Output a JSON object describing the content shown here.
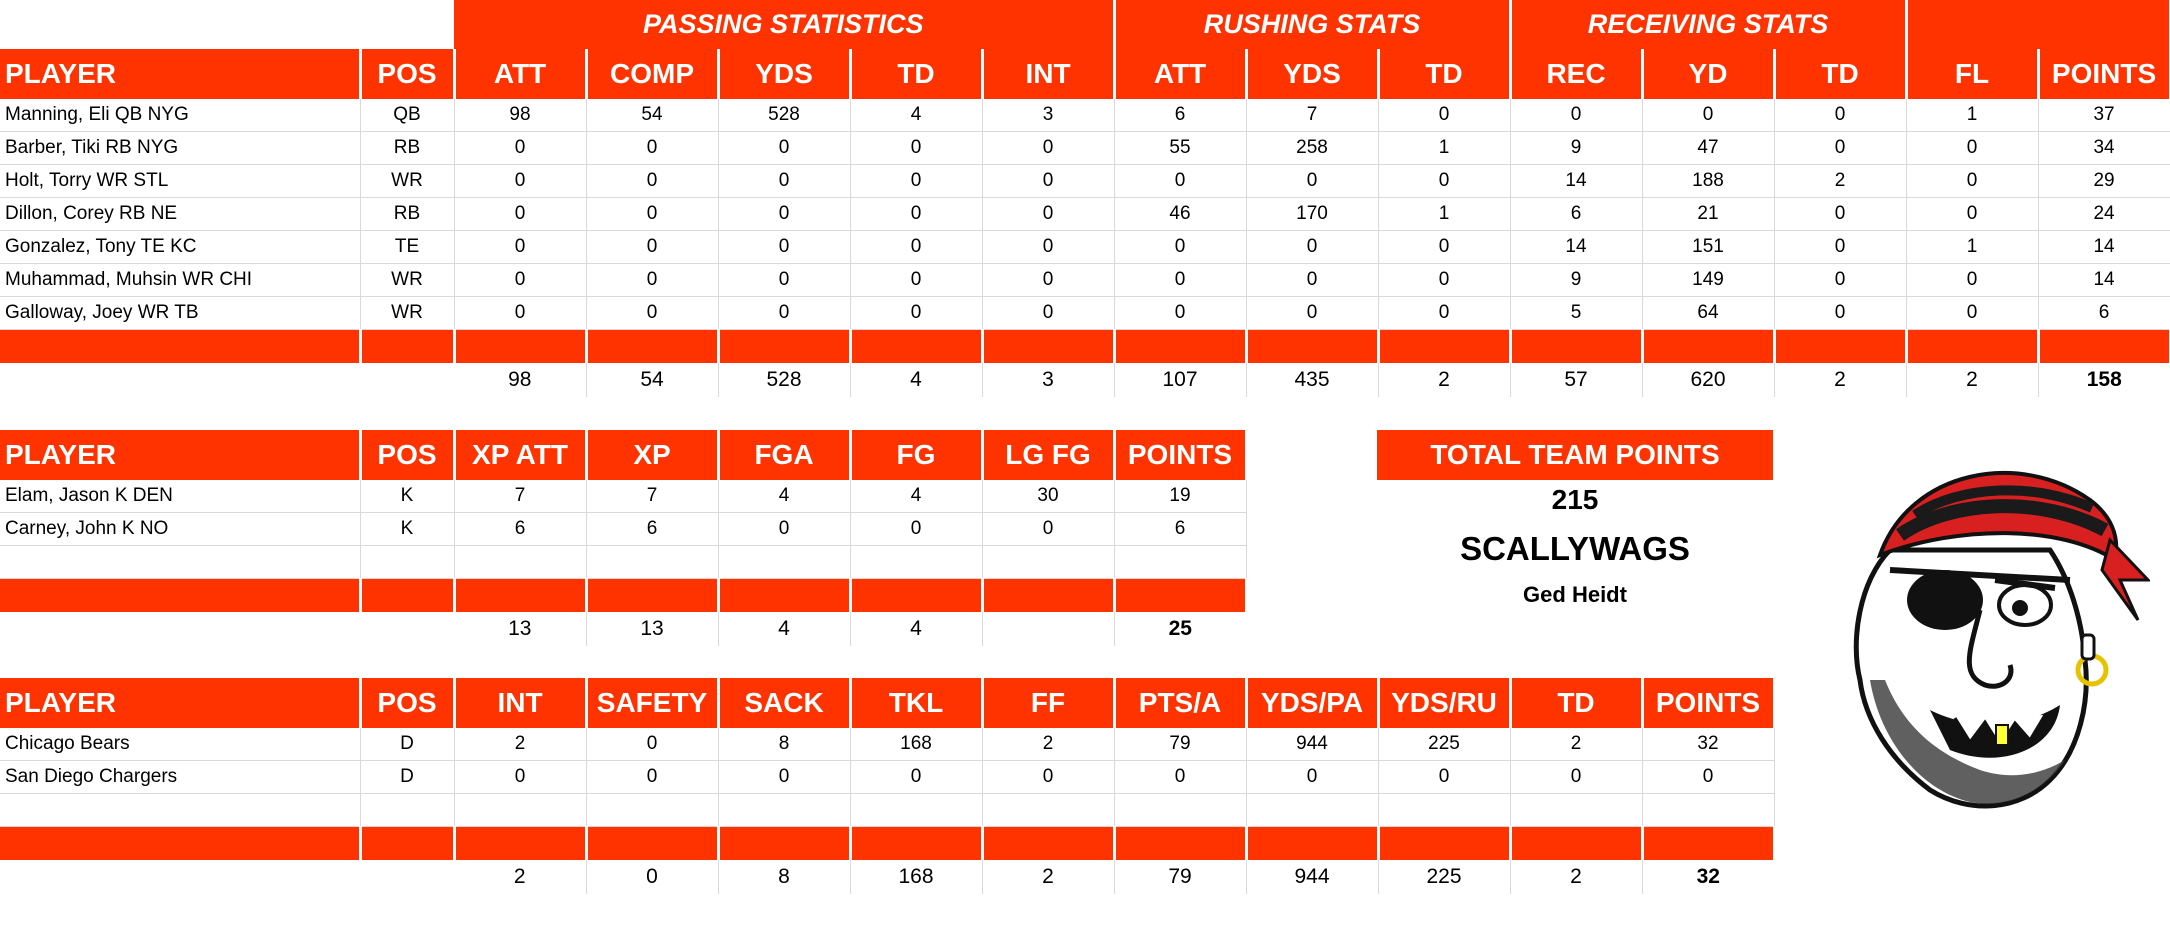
{
  "offense": {
    "groups": {
      "passing": "PASSING STATISTICS",
      "rushing": "RUSHING STATS",
      "receiving": "RECEIVING STATS"
    },
    "headers": [
      "PLAYER",
      "POS",
      "ATT",
      "COMP",
      "YDS",
      "TD",
      "INT",
      "ATT",
      "YDS",
      "TD",
      "REC",
      "YD",
      "TD",
      "FL",
      "POINTS"
    ],
    "rows": [
      [
        "Manning, Eli QB NYG",
        "QB",
        "98",
        "54",
        "528",
        "4",
        "3",
        "6",
        "7",
        "0",
        "0",
        "0",
        "0",
        "1",
        "37"
      ],
      [
        "Barber, Tiki RB NYG",
        "RB",
        "0",
        "0",
        "0",
        "0",
        "0",
        "55",
        "258",
        "1",
        "9",
        "47",
        "0",
        "0",
        "34"
      ],
      [
        "Holt, Torry WR STL",
        "WR",
        "0",
        "0",
        "0",
        "0",
        "0",
        "0",
        "0",
        "0",
        "14",
        "188",
        "2",
        "0",
        "29"
      ],
      [
        "Dillon, Corey RB NE",
        "RB",
        "0",
        "0",
        "0",
        "0",
        "0",
        "46",
        "170",
        "1",
        "6",
        "21",
        "0",
        "0",
        "24"
      ],
      [
        "Gonzalez, Tony TE KC",
        "TE",
        "0",
        "0",
        "0",
        "0",
        "0",
        "0",
        "0",
        "0",
        "14",
        "151",
        "0",
        "1",
        "14"
      ],
      [
        "Muhammad, Muhsin WR CHI",
        "WR",
        "0",
        "0",
        "0",
        "0",
        "0",
        "0",
        "0",
        "0",
        "9",
        "149",
        "0",
        "0",
        "14"
      ],
      [
        "Galloway, Joey WR TB",
        "WR",
        "0",
        "0",
        "0",
        "0",
        "0",
        "0",
        "0",
        "0",
        "5",
        "64",
        "0",
        "0",
        "6"
      ]
    ],
    "totals": [
      "",
      "",
      "98",
      "54",
      "528",
      "4",
      "3",
      "107",
      "435",
      "2",
      "57",
      "620",
      "2",
      "2",
      "158"
    ]
  },
  "kicking": {
    "headers": [
      "PLAYER",
      "POS",
      "XP ATT",
      "XP",
      "FGA",
      "FG",
      "LG FG",
      "POINTS"
    ],
    "rows": [
      [
        "Elam, Jason K DEN",
        "K",
        "7",
        "7",
        "4",
        "4",
        "30",
        "19"
      ],
      [
        "Carney, John K NO",
        "K",
        "6",
        "6",
        "0",
        "0",
        "0",
        "6"
      ]
    ],
    "totals": [
      "",
      "",
      "13",
      "13",
      "4",
      "4",
      "",
      "25"
    ]
  },
  "defense": {
    "headers": [
      "PLAYER",
      "POS",
      "INT",
      "SAFETY",
      "SACK",
      "TKL",
      "FF",
      "PTS/A",
      "YDS/PA",
      "YDS/RU",
      "TD",
      "POINTS"
    ],
    "rows": [
      [
        "Chicago Bears",
        "D",
        "2",
        "0",
        "8",
        "168",
        "2",
        "79",
        "944",
        "225",
        "2",
        "32"
      ],
      [
        "San Diego Chargers",
        "D",
        "0",
        "0",
        "0",
        "0",
        "0",
        "0",
        "0",
        "0",
        "0",
        "0"
      ]
    ],
    "totals": [
      "",
      "",
      "2",
      "0",
      "8",
      "168",
      "2",
      "79",
      "944",
      "225",
      "2",
      "32"
    ]
  },
  "team": {
    "points_label": "TOTAL TEAM POINTS",
    "points": "215",
    "name": "SCALLYWAGS",
    "owner": "Ged Heidt"
  },
  "logo": {
    "icon": "pirate-mascot-icon",
    "bandana_color": "#d92020",
    "stripe_color": "#1a1a1a",
    "tooth_color": "#ffff33"
  },
  "colors": {
    "header_bg": "#ff3300",
    "header_text": "#ffffff",
    "grid": "#d9d9d9"
  }
}
